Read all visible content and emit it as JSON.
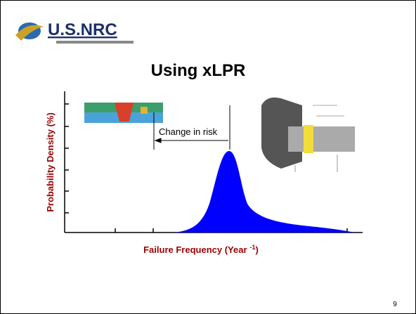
{
  "logo": {
    "text": "U.S.NRC"
  },
  "title": "Using xLPR",
  "figure": {
    "y_label": "Probability Density (%)",
    "x_label": {
      "text": "Failure Frequency (Year",
      "exponent": "-1",
      "close": ")"
    },
    "annotation": "Change in risk"
  },
  "page_number": "9"
}
